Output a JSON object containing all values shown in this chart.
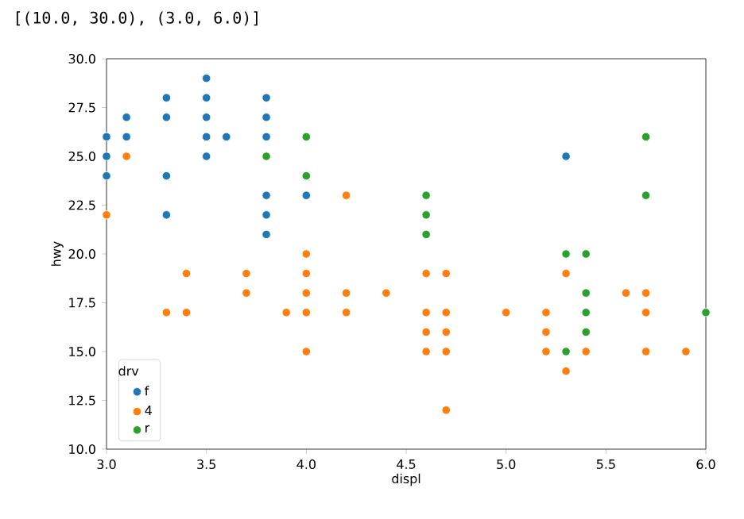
{
  "chart_data": {
    "type": "scatter",
    "xlabel": "displ",
    "ylabel": "hwy",
    "legend_title": "drv",
    "annotations": [
      "[(10.0, 30.0), (3.0, 6.0)]"
    ],
    "series": [
      {
        "name": "f",
        "color": "#1f77b4",
        "x": [
          3.0,
          3.0,
          3.0,
          3.1,
          3.1,
          3.3,
          3.3,
          3.3,
          3.3,
          3.5,
          3.5,
          3.5,
          3.5,
          3.5,
          3.6,
          3.8,
          3.8,
          3.8,
          3.8,
          3.8,
          3.8,
          4.0,
          5.3
        ],
        "values": [
          26,
          25,
          24,
          27,
          26,
          28,
          27,
          24,
          22,
          29,
          28,
          27,
          26,
          25,
          26,
          28,
          27,
          26,
          23,
          22,
          21,
          23,
          25
        ]
      },
      {
        "name": "4",
        "color": "#ff7f0e",
        "x": [
          3.0,
          3.1,
          3.3,
          3.4,
          3.4,
          3.7,
          3.7,
          3.9,
          4.0,
          4.0,
          4.0,
          4.0,
          4.0,
          4.2,
          4.2,
          4.2,
          4.4,
          4.6,
          4.6,
          4.6,
          4.6,
          4.7,
          4.7,
          4.7,
          4.7,
          4.7,
          5.0,
          5.2,
          5.2,
          5.2,
          5.3,
          5.3,
          5.4,
          5.6,
          5.7,
          5.7,
          5.7,
          5.9
        ],
        "values": [
          22,
          25,
          17,
          19,
          17,
          19,
          18,
          17,
          20,
          19,
          18,
          17,
          15,
          23,
          18,
          17,
          18,
          19,
          17,
          16,
          15,
          19,
          17,
          16,
          15,
          12,
          17,
          17,
          16,
          15,
          19,
          14,
          15,
          18,
          18,
          17,
          15,
          15
        ]
      },
      {
        "name": "r",
        "color": "#2ca02c",
        "x": [
          3.8,
          4.0,
          4.0,
          4.6,
          4.6,
          4.6,
          5.3,
          5.3,
          5.4,
          5.4,
          5.4,
          5.4,
          5.7,
          5.7,
          6.0
        ],
        "values": [
          25,
          26,
          24,
          23,
          22,
          21,
          20,
          15,
          20,
          18,
          17,
          16,
          26,
          23,
          17
        ]
      }
    ],
    "xlim": [
      3.0,
      6.0
    ],
    "ylim": [
      10.0,
      30.0
    ],
    "xticks": [
      {
        "value": 3.0,
        "label": "3.0"
      },
      {
        "value": 3.5,
        "label": "3.5"
      },
      {
        "value": 4.0,
        "label": "4.0"
      },
      {
        "value": 4.5,
        "label": "4.5"
      },
      {
        "value": 5.0,
        "label": "5.0"
      },
      {
        "value": 5.5,
        "label": "5.5"
      },
      {
        "value": 6.0,
        "label": "6.0"
      }
    ],
    "yticks": [
      {
        "value": 10.0,
        "label": "10.0"
      },
      {
        "value": 12.5,
        "label": "12.5"
      },
      {
        "value": 15.0,
        "label": "15.0"
      },
      {
        "value": 17.5,
        "label": "17.5"
      },
      {
        "value": 20.0,
        "label": "20.0"
      },
      {
        "value": 22.5,
        "label": "22.5"
      },
      {
        "value": 25.0,
        "label": "25.0"
      },
      {
        "value": 27.5,
        "label": "27.5"
      },
      {
        "value": 30.0,
        "label": "30.0"
      }
    ],
    "legend": "bottom left",
    "marker": "circle",
    "grid": false
  }
}
